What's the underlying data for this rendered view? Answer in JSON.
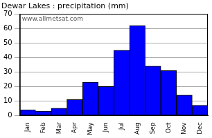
{
  "chart_data": {
    "type": "bar",
    "title": "Dewar Lakes : precipitation (mm)",
    "annotation": "www.allmetsat.com",
    "categories": [
      "Jan",
      "Feb",
      "Mar",
      "Apr",
      "May",
      "Jun",
      "Jul",
      "Aug",
      "Sep",
      "Oct",
      "Nov",
      "Dec"
    ],
    "values": [
      4,
      3,
      5,
      11,
      23,
      20,
      45,
      62,
      34,
      31,
      14,
      7
    ],
    "color": "#0000ff",
    "ylim": [
      0,
      70
    ],
    "yticks": [
      0,
      10,
      20,
      30,
      40,
      50,
      60,
      70
    ],
    "grid": true
  }
}
